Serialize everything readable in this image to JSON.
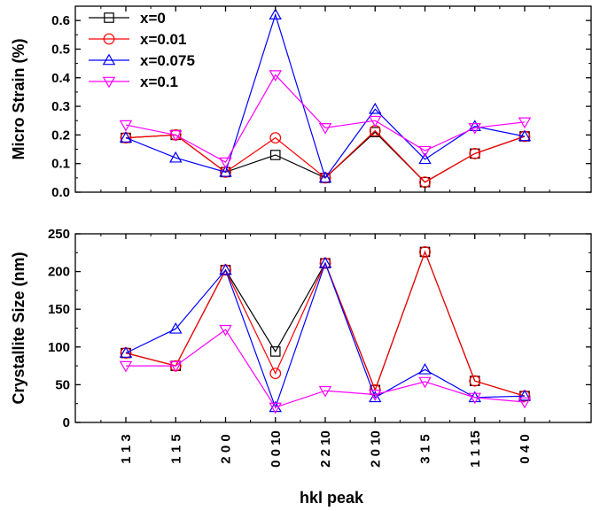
{
  "chart_data": [
    {
      "type": "line",
      "title": "",
      "xlabel": "",
      "ylabel": "Micro Strain (%)",
      "categories": [
        "1 1 3",
        "1 1 5",
        "2 0 0",
        "0 0 10",
        "2 2 10",
        "2 0 10",
        "3 1 5",
        "1 1 15",
        "0 4 0"
      ],
      "ylim": [
        0,
        0.65
      ],
      "yticks": [
        "0.0",
        "0.1",
        "0.2",
        "0.3",
        "0.4",
        "0.5",
        "0.6"
      ],
      "legend_position": "top-left",
      "grid": false,
      "series": [
        {
          "name": "x=0",
          "color": "#000000",
          "marker": "square",
          "values": [
            0.19,
            0.2,
            0.07,
            0.13,
            0.05,
            0.21,
            0.035,
            0.135,
            0.195
          ]
        },
        {
          "name": "x=0.01",
          "color": "#ff0000",
          "marker": "circle",
          "values": [
            0.19,
            0.2,
            0.07,
            0.19,
            0.05,
            0.215,
            0.035,
            0.135,
            0.195
          ]
        },
        {
          "name": "x=0.075",
          "color": "#0000ff",
          "marker": "triangle-up",
          "values": [
            0.19,
            0.12,
            0.07,
            0.62,
            0.05,
            0.29,
            0.115,
            0.23,
            0.195
          ]
        },
        {
          "name": "x=0.1",
          "color": "#ff00ff",
          "marker": "triangle-down",
          "values": [
            0.235,
            0.2,
            0.105,
            0.41,
            0.225,
            0.25,
            0.145,
            0.225,
            0.245
          ]
        }
      ]
    },
    {
      "type": "line",
      "title": "",
      "xlabel": "hkl peak",
      "ylabel": "Crystallite Size (nm)",
      "categories": [
        "1 1 3",
        "1 1 5",
        "2 0 0",
        "0 0 10",
        "2 2 10",
        "2 0 10",
        "3 1 5",
        "1 1 15",
        "0 4 0"
      ],
      "ylim": [
        0,
        250
      ],
      "yticks": [
        "0",
        "50",
        "100",
        "150",
        "200",
        "250"
      ],
      "grid": false,
      "series": [
        {
          "name": "x=0",
          "color": "#000000",
          "marker": "square",
          "values": [
            92,
            75,
            202,
            94,
            211,
            43,
            226,
            55,
            35
          ]
        },
        {
          "name": "x=0.01",
          "color": "#ff0000",
          "marker": "circle",
          "values": [
            92,
            75,
            202,
            65,
            211,
            43,
            226,
            55,
            35
          ]
        },
        {
          "name": "x=0.075",
          "color": "#0000ff",
          "marker": "triangle-up",
          "values": [
            92,
            124,
            202,
            20,
            211,
            33,
            70,
            33,
            35
          ]
        },
        {
          "name": "x=0.1",
          "color": "#ff00ff",
          "marker": "triangle-down",
          "values": [
            75,
            75,
            123,
            20,
            42,
            37,
            54,
            33,
            27
          ]
        }
      ]
    }
  ]
}
